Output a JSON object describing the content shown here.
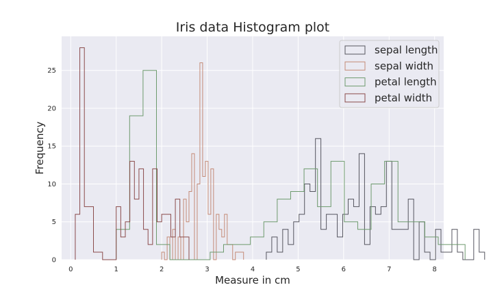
{
  "chart_data": {
    "type": "histogram",
    "title": "Iris data Histogram plot",
    "xlabel": "Measure in cm",
    "ylabel": "Frequency",
    "xlim": [
      -0.2,
      8.2
    ],
    "ylim": [
      0,
      29.5
    ],
    "xticks": [
      "0",
      "1",
      "2",
      "3",
      "4",
      "5",
      "6",
      "7",
      "8"
    ],
    "yticks": [
      "0",
      "5",
      "10",
      "15",
      "20",
      "25"
    ],
    "grid": true,
    "legend_position": "top-right",
    "series": [
      {
        "name": "sepal length",
        "color": "#55555f",
        "bin_start": 4.3,
        "bin_width": 0.12,
        "counts": [
          1,
          3,
          1,
          4,
          2,
          5,
          6,
          10,
          9,
          16,
          4,
          6,
          6,
          3,
          6,
          8,
          7,
          14,
          2,
          7,
          6,
          7,
          13,
          4,
          4,
          4,
          8,
          0,
          5,
          1,
          0,
          4,
          1,
          1,
          4,
          1,
          0,
          0,
          4,
          1
        ]
      },
      {
        "name": "sepal width",
        "color": "#c48a76",
        "bin_start": 2.0,
        "bin_width": 0.06,
        "counts": [
          1,
          0,
          3,
          0,
          4,
          0,
          3,
          0,
          8,
          5,
          9,
          14,
          0,
          10,
          26,
          11,
          13,
          6,
          12,
          0,
          6,
          4,
          3,
          6,
          2,
          2,
          0,
          1,
          1,
          1
        ]
      },
      {
        "name": "petal length",
        "color": "#6d9a6d",
        "bin_start": 1.0,
        "bin_width": 0.295,
        "counts": [
          4,
          19,
          25,
          2,
          0,
          0,
          0,
          1,
          2,
          2,
          3,
          5,
          8,
          9,
          12,
          7,
          13,
          5,
          4,
          10,
          13,
          5,
          5,
          3,
          2,
          2
        ]
      },
      {
        "name": "petal width",
        "color": "#8a4a4a",
        "bin_start": 0.1,
        "bin_width": 0.1,
        "counts": [
          6,
          28,
          7,
          7,
          1,
          1,
          0,
          0,
          0,
          7,
          3,
          5,
          13,
          8,
          12,
          4,
          2,
          12,
          5,
          6,
          6,
          3,
          8,
          3,
          3
        ]
      }
    ]
  }
}
